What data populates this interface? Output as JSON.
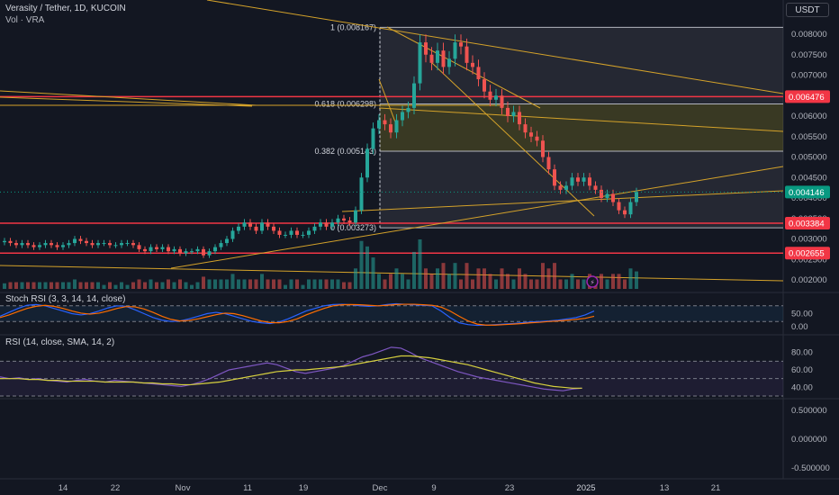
{
  "header": {
    "title": "Verasity / Tether, 1D, KUCOIN",
    "volume_label": "Vol · VRA",
    "unit": "USDT",
    "stoch_label": "Stoch RSI (3, 3, 14, 14, close)",
    "rsi_label": "RSI (14, close, SMA, 14, 2)"
  },
  "colors": {
    "up": "#26a69a",
    "down": "#ef5350",
    "fib_line": "#b2b5be",
    "trend": "#d4a22a",
    "support": "#f23645",
    "current_price": "#089981",
    "stoch_k": "#2962ff",
    "stoch_d": "#ff6d00",
    "rsi": "#7e57c2",
    "rsi_ma": "#d7d13f"
  },
  "chart_data": [
    {
      "type": "candlestick",
      "ylim": [
        0.00175,
        0.0083
      ],
      "x_tick_labels": [
        "14",
        "22",
        "Nov",
        "11",
        "19",
        "Dec",
        "9",
        "23",
        "2025",
        "13",
        "21"
      ],
      "y_tick_labels": [
        "0.008000",
        "0.007500",
        "0.007000",
        "0.006500",
        "0.006000",
        "0.005500",
        "0.005000",
        "0.004500",
        "0.004000",
        "0.003500",
        "0.003000",
        "0.002500",
        "0.002000"
      ],
      "fib_levels": [
        {
          "label": "1 (0.008167)",
          "value": 0.008167
        },
        {
          "label": "0.618 (0.006298)",
          "value": 0.006298
        },
        {
          "label": "0.382 (0.005143)",
          "value": 0.005143
        },
        {
          "label": "0 (0.003273)",
          "value": 0.003273
        }
      ],
      "price_labels": [
        {
          "text": "0.006476",
          "value": 0.006476,
          "kind": "support"
        },
        {
          "text": "0.004146",
          "value": 0.004146,
          "kind": "current"
        },
        {
          "text": "0.003384",
          "value": 0.003384,
          "kind": "support"
        },
        {
          "text": "0.002655",
          "value": 0.002655,
          "kind": "support"
        }
      ],
      "closes": [
        0.00295,
        0.0029,
        0.00285,
        0.0029,
        0.00285,
        0.0028,
        0.00285,
        0.0029,
        0.00285,
        0.0028,
        0.00285,
        0.0029,
        0.003,
        0.00295,
        0.0029,
        0.00285,
        0.0029,
        0.0029,
        0.00285,
        0.00285,
        0.0029,
        0.0029,
        0.00285,
        0.00275,
        0.0027,
        0.0028,
        0.00275,
        0.0028,
        0.0027,
        0.00275,
        0.00265,
        0.0027,
        0.0027,
        0.00275,
        0.0026,
        0.0027,
        0.0028,
        0.0029,
        0.003,
        0.0032,
        0.0033,
        0.0034,
        0.0033,
        0.0032,
        0.0034,
        0.0033,
        0.0032,
        0.0031,
        0.0031,
        0.0032,
        0.0031,
        0.0031,
        0.0032,
        0.0033,
        0.0034,
        0.0033,
        0.0034,
        0.0035,
        0.00345,
        0.0034,
        0.0037,
        0.0045,
        0.0052,
        0.0057,
        0.0059,
        0.0058,
        0.0056,
        0.0059,
        0.0061,
        0.0062,
        0.0068,
        0.0078,
        0.0075,
        0.0073,
        0.0076,
        0.0072,
        0.0074,
        0.0078,
        0.0077,
        0.0073,
        0.0072,
        0.0069,
        0.0066,
        0.0064,
        0.0065,
        0.0062,
        0.006,
        0.0061,
        0.0058,
        0.0056,
        0.0055,
        0.0054,
        0.005,
        0.0047,
        0.0043,
        0.0042,
        0.0043,
        0.0045,
        0.0044,
        0.0045,
        0.0043,
        0.0042,
        0.004,
        0.0041,
        0.0039,
        0.0037,
        0.0036,
        0.0039,
        0.004146
      ]
    },
    {
      "type": "line",
      "title": "Stoch RSI (3, 3, 14, 14, close)",
      "ylim": [
        0,
        100
      ],
      "y_tick_labels": [
        "50.00",
        "0.00"
      ],
      "series": [
        {
          "values": [
            40,
            55,
            70,
            82,
            85,
            80,
            70,
            60,
            50,
            45,
            50,
            60,
            72,
            80,
            78,
            65,
            50,
            35,
            25,
            20,
            22,
            30,
            40,
            50,
            55,
            50,
            40,
            30,
            20,
            15,
            12,
            18,
            30,
            45,
            60,
            70,
            80,
            85,
            86,
            84,
            80,
            78,
            80,
            85,
            88,
            86,
            84,
            82,
            80,
            60,
            35,
            15,
            8,
            5,
            6,
            8,
            10,
            12,
            15,
            18,
            20,
            22,
            25,
            30,
            35,
            45,
            60
          ]
        },
        {
          "values": [
            35,
            45,
            58,
            70,
            78,
            82,
            78,
            70,
            60,
            52,
            48,
            52,
            60,
            70,
            77,
            76,
            68,
            55,
            40,
            28,
            22,
            24,
            30,
            38,
            46,
            52,
            50,
            42,
            32,
            22,
            16,
            15,
            20,
            30,
            45,
            58,
            70,
            80,
            84,
            85,
            84,
            82,
            80,
            82,
            85,
            86,
            86,
            84,
            82,
            75,
            60,
            40,
            22,
            10,
            6,
            6,
            8,
            10,
            12,
            15,
            17,
            20,
            22,
            25,
            28,
            32,
            40
          ]
        }
      ]
    },
    {
      "type": "line",
      "title": "RSI (14, close, SMA, 14, 2)",
      "ylim": [
        30,
        90
      ],
      "y_tick_labels": [
        "80.00",
        "60.00",
        "40.00"
      ],
      "series": [
        {
          "values": [
            52,
            50,
            51,
            49,
            50,
            48,
            47,
            46,
            48,
            49,
            47,
            46,
            48,
            47,
            46,
            45,
            44,
            43,
            42,
            41,
            43,
            46,
            50,
            55,
            60,
            62,
            64,
            66,
            68,
            66,
            62,
            58,
            56,
            58,
            60,
            62,
            65,
            70,
            75,
            78,
            82,
            86,
            85,
            80,
            74,
            70,
            66,
            62,
            58,
            55,
            52,
            50,
            48,
            46,
            44,
            42,
            40,
            38,
            37,
            36,
            38,
            39
          ]
        },
        {
          "values": [
            50,
            50,
            50,
            49,
            49,
            48,
            48,
            47,
            47,
            47,
            47,
            46,
            46,
            46,
            46,
            45,
            45,
            44,
            44,
            43,
            43,
            44,
            45,
            46,
            48,
            50,
            52,
            54,
            56,
            58,
            59,
            60,
            60,
            61,
            62,
            63,
            64,
            66,
            68,
            70,
            72,
            74,
            76,
            76,
            75,
            74,
            72,
            70,
            68,
            66,
            63,
            60,
            57,
            54,
            51,
            48,
            45,
            43,
            41,
            40,
            39,
            39
          ]
        }
      ]
    },
    {
      "type": "axis",
      "y_tick_labels": [
        "0.500000",
        "0.000000",
        "-0.500000"
      ]
    }
  ]
}
